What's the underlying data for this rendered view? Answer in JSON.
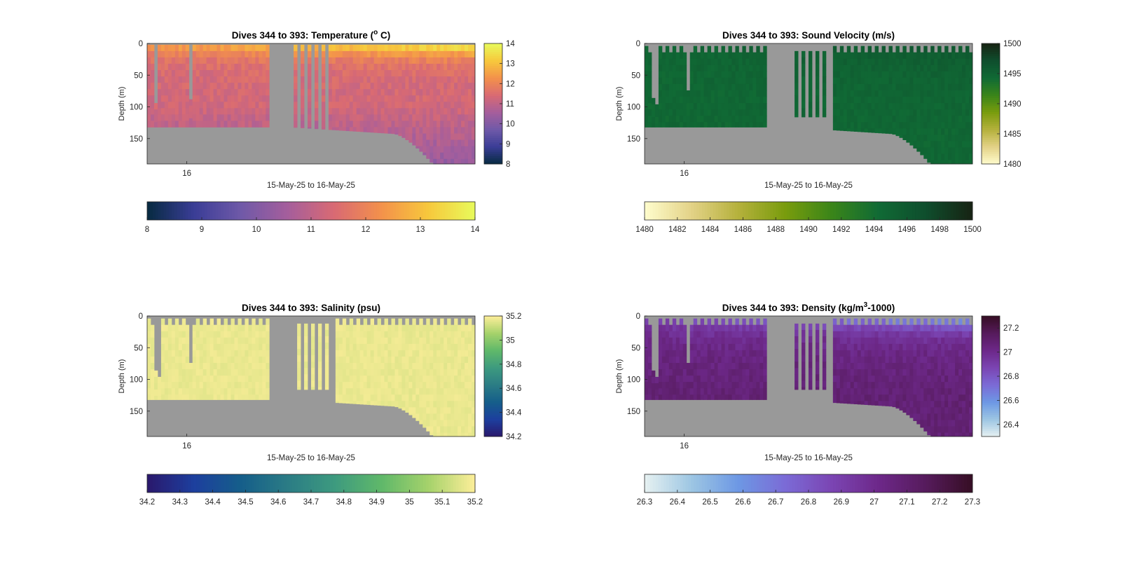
{
  "colors": {
    "background": "#ffffff",
    "no_data": "#999999",
    "axis": "#262626"
  },
  "chart_data": [
    {
      "type": "heatmap",
      "title": "Dives 344 to 393: Temperature (",
      "title_sup": "o",
      "title_end": " C)",
      "xlabel": "15-May-25 to 16-May-25",
      "ylabel": "Depth (m)",
      "x_ticks": [
        "16"
      ],
      "y_ticks": [
        0,
        50,
        100,
        150
      ],
      "ylim": [
        0,
        190
      ],
      "y_reversed": true,
      "colormap": "thermal",
      "colormap_stops": [
        "#062a40",
        "#3a3d96",
        "#6f59a8",
        "#a55e9c",
        "#d96a73",
        "#f3914b",
        "#f7c83c",
        "#e8fa5b"
      ],
      "clim": [
        8,
        14
      ],
      "colorbar_right_ticks": [
        8,
        9,
        10,
        11,
        12,
        13,
        14
      ],
      "colorbar_bottom_ticks": [
        "8",
        "9",
        "10",
        "11",
        "12",
        "13",
        "14"
      ],
      "grid": false
    },
    {
      "type": "heatmap",
      "title": "Dives 344 to 393: Sound Velocity (m/s)",
      "xlabel": "15-May-25 to 16-May-25",
      "ylabel": "Depth (m)",
      "x_ticks": [
        "16"
      ],
      "y_ticks": [
        0,
        50,
        100,
        150
      ],
      "ylim": [
        0,
        190
      ],
      "y_reversed": true,
      "colormap": "speed",
      "colormap_stops": [
        "#fffdcd",
        "#e3d287",
        "#b5b13c",
        "#799c0d",
        "#3a8519",
        "#106a35",
        "#0f4e2d",
        "#172313"
      ],
      "clim": [
        1480,
        1500
      ],
      "colorbar_right_ticks": [
        1480,
        1485,
        1490,
        1495,
        1500
      ],
      "colorbar_bottom_ticks": [
        "1480",
        "1482",
        "1484",
        "1486",
        "1488",
        "1490",
        "1492",
        "1494",
        "1496",
        "1498",
        "1500"
      ],
      "grid": false
    },
    {
      "type": "heatmap",
      "title": "Dives 344 to 393: Salinity (psu)",
      "xlabel": "15-May-25 to 16-May-25",
      "ylabel": "Depth (m)",
      "x_ticks": [
        "16"
      ],
      "y_ticks": [
        0,
        50,
        100,
        150
      ],
      "ylim": [
        0,
        190
      ],
      "y_reversed": true,
      "colormap": "haline",
      "colormap_stops": [
        "#2a186c",
        "#1d3f9e",
        "#155e8a",
        "#2b7c85",
        "#3d9a7f",
        "#5fb86a",
        "#a5d26b",
        "#fdee99"
      ],
      "clim": [
        34.2,
        35.2
      ],
      "colorbar_right_ticks": [
        34.2,
        34.4,
        34.6,
        34.8,
        35,
        35.2
      ],
      "colorbar_bottom_ticks": [
        "34.2",
        "34.3",
        "34.4",
        "34.5",
        "34.6",
        "34.7",
        "34.8",
        "34.9",
        "35",
        "35.1",
        "35.2"
      ],
      "grid": false
    },
    {
      "type": "heatmap",
      "title": "Dives 344 to 393: Density (kg/m",
      "title_sup": "3",
      "title_end": "-1000)",
      "xlabel": "15-May-25 to 16-May-25",
      "ylabel": "Depth (m)",
      "x_ticks": [
        "16"
      ],
      "y_ticks": [
        0,
        50,
        100,
        150
      ],
      "ylim": [
        0,
        190
      ],
      "y_reversed": true,
      "colormap": "dense",
      "colormap_stops": [
        "#e6f1f1",
        "#9dc6e3",
        "#6d98e4",
        "#7b6bd6",
        "#7b45b3",
        "#6d2889",
        "#561b5c",
        "#360e24"
      ],
      "clim": [
        26.3,
        27.3
      ],
      "colorbar_right_ticks": [
        26.4,
        26.6,
        26.8,
        27,
        27.2
      ],
      "colorbar_bottom_ticks": [
        "26.3",
        "26.4",
        "26.5",
        "26.6",
        "26.7",
        "26.8",
        "26.9",
        "27",
        "27.1",
        "27.2",
        "27.3"
      ],
      "grid": false
    }
  ]
}
